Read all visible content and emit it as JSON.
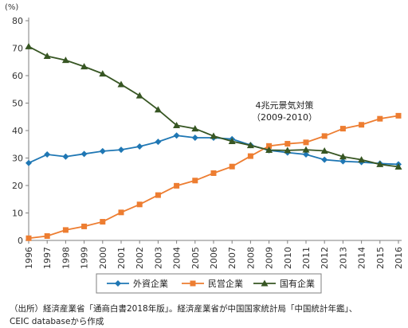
{
  "chart_data": {
    "type": "line",
    "unit": "(%)",
    "x": [
      "1996",
      "1997",
      "1998",
      "1999",
      "2000",
      "2001",
      "2002",
      "2003",
      "2004",
      "2005",
      "2006",
      "2007",
      "2008",
      "2009",
      "2010",
      "2011",
      "2012",
      "2013",
      "2014",
      "2015",
      "2016"
    ],
    "ylim": [
      0,
      80
    ],
    "yticks": [
      0,
      10,
      20,
      30,
      40,
      50,
      60,
      70,
      80
    ],
    "grid": false,
    "legend_position": "bottom",
    "series": [
      {
        "name": "外資企業",
        "color": "#1f77b4",
        "marker": "diamond",
        "values": [
          28.2,
          31.3,
          30.5,
          31.5,
          32.5,
          33.0,
          34.2,
          35.9,
          38.2,
          37.4,
          37.4,
          36.9,
          34.7,
          32.8,
          32.0,
          31.3,
          29.4,
          28.8,
          28.5,
          28.0,
          27.7
        ]
      },
      {
        "name": "民営企業",
        "color": "#ed7d31",
        "marker": "square",
        "values": [
          0.8,
          1.6,
          3.8,
          5.1,
          6.8,
          10.2,
          13.1,
          16.5,
          19.9,
          21.8,
          24.5,
          26.9,
          30.7,
          34.4,
          35.2,
          35.7,
          38.0,
          40.7,
          42.1,
          44.3,
          45.4
        ]
      },
      {
        "name": "国有企業",
        "color": "#375623",
        "marker": "triangle",
        "values": [
          70.6,
          67.1,
          65.6,
          63.3,
          60.7,
          56.8,
          52.7,
          47.6,
          41.9,
          40.7,
          38.0,
          36.1,
          34.6,
          32.9,
          32.8,
          33.0,
          32.6,
          30.5,
          29.4,
          27.7,
          26.8
        ]
      }
    ],
    "annotation": {
      "lines": [
        "4兆元景気対策",
        "（2009-2010）"
      ]
    }
  },
  "source_note": {
    "line1": "（出所）経済産業省「通商白書2018年版」。経済産業省が中国国家統計局「中国統計年鑑」、",
    "line2": "CEIC databaseから作成"
  }
}
